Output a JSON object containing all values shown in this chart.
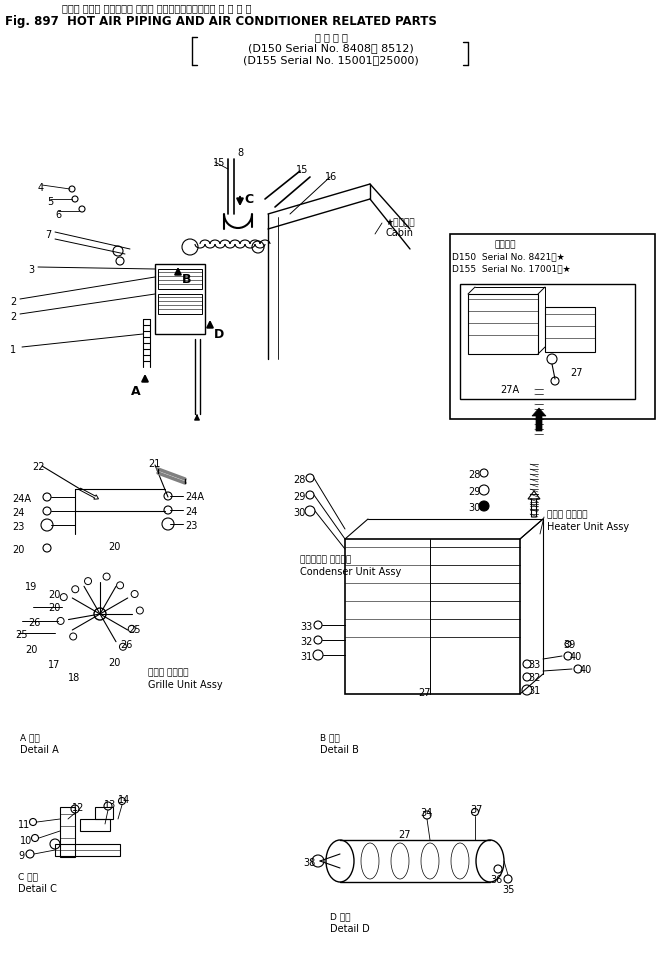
{
  "title_jp": "ホット エアー パイピング および エアーコンディショナ 間 連 部 品",
  "title_en": "Fig. 897  HOT AIR PIPING AND AIR CONDITIONER RELATED PARTS",
  "serial_jp": "適 用 号 機",
  "serial1": "(D150 Serial No. 8408～ 8512)",
  "serial2": "(D155 Serial No. 15001～25000)",
  "app_jp": "適用号機",
  "app1": "D150  Serial No. 8421～★",
  "app2": "D155  Serial No. 17001～★",
  "cabin_jp": "★キャビン",
  "cabin_en": "Cabin",
  "condenser_jp": "コンデンサ ユニット",
  "condenser_en": "Condenser Unit Assy",
  "grille_jp": "グリル ユニット",
  "grille_en": "Grille Unit Assy",
  "heater_jp": "ヒータ ユニット",
  "heater_en": "Heater Unit Assy",
  "detail_a_jp": "A 詳細",
  "detail_a_en": "Detail A",
  "detail_b_jp": "B 詳細",
  "detail_b_en": "Detail B",
  "detail_c_jp": "C 詳細",
  "detail_c_en": "Detail C",
  "detail_d_jp": "D 詳細",
  "detail_d_en": "Detail D",
  "bg": "#ffffff"
}
